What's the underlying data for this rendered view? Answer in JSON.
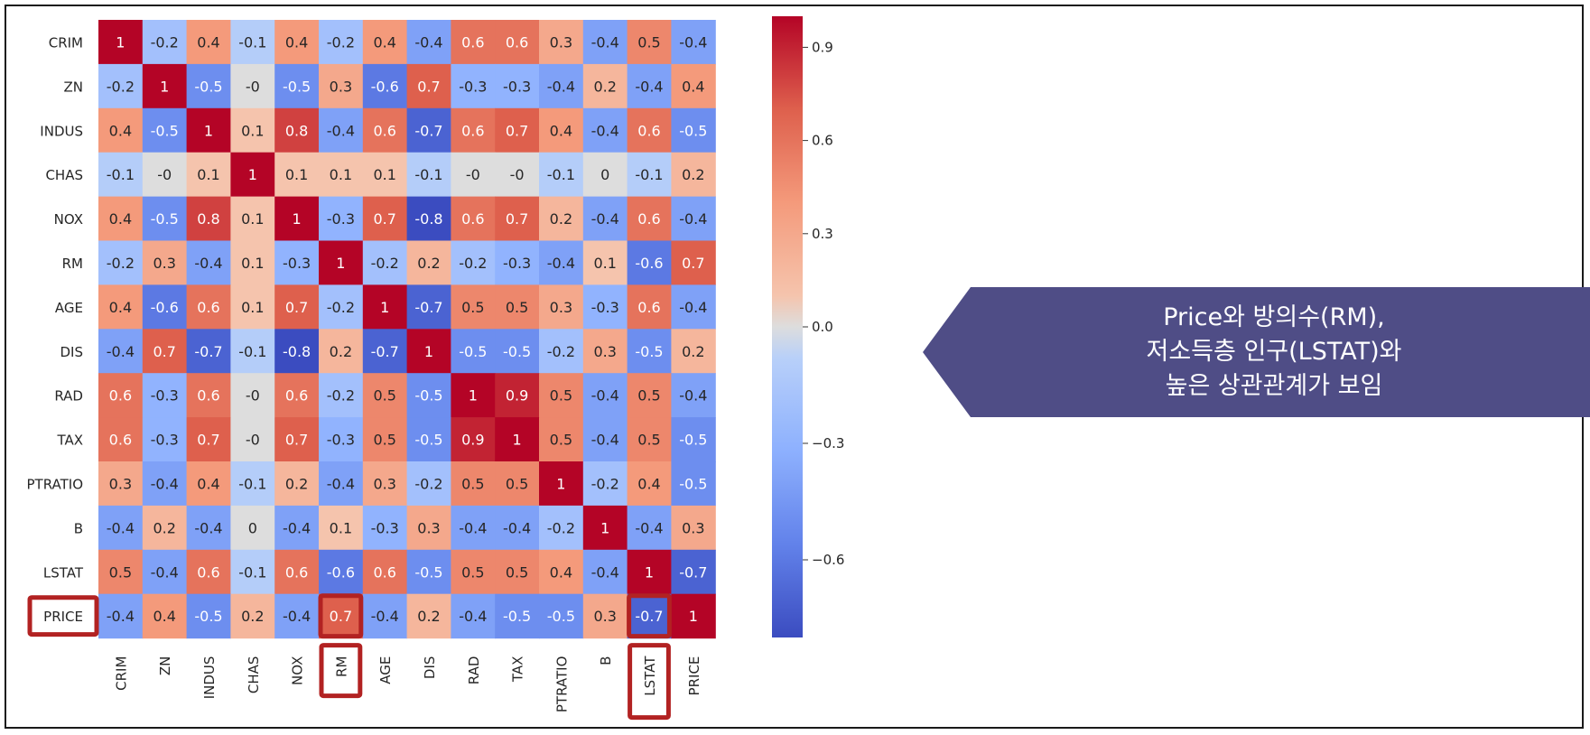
{
  "chart_data": {
    "type": "heatmap",
    "labels": [
      "CRIM",
      "ZN",
      "INDUS",
      "CHAS",
      "NOX",
      "RM",
      "AGE",
      "DIS",
      "RAD",
      "TAX",
      "PTRATIO",
      "B",
      "LSTAT",
      "PRICE"
    ],
    "values": [
      [
        1,
        -0.2,
        0.4,
        -0.1,
        0.4,
        -0.2,
        0.4,
        -0.4,
        0.6,
        0.6,
        0.3,
        -0.4,
        0.5,
        -0.4
      ],
      [
        -0.2,
        1,
        -0.5,
        0,
        -0.5,
        0.3,
        -0.6,
        0.7,
        -0.3,
        -0.3,
        -0.4,
        0.2,
        -0.4,
        0.4
      ],
      [
        0.4,
        -0.5,
        1,
        0.1,
        0.8,
        -0.4,
        0.6,
        -0.7,
        0.6,
        0.7,
        0.4,
        -0.4,
        0.6,
        -0.5
      ],
      [
        -0.1,
        0,
        0.1,
        1,
        0.1,
        0.1,
        0.1,
        -0.1,
        0,
        0,
        -0.1,
        0,
        -0.1,
        0.2
      ],
      [
        0.4,
        -0.5,
        0.8,
        0.1,
        1,
        -0.3,
        0.7,
        -0.8,
        0.6,
        0.7,
        0.2,
        -0.4,
        0.6,
        -0.4
      ],
      [
        -0.2,
        0.3,
        -0.4,
        0.1,
        -0.3,
        1,
        -0.2,
        0.2,
        -0.2,
        -0.3,
        -0.4,
        0.1,
        -0.6,
        0.7
      ],
      [
        0.4,
        -0.6,
        0.6,
        0.1,
        0.7,
        -0.2,
        1,
        -0.7,
        0.5,
        0.5,
        0.3,
        -0.3,
        0.6,
        -0.4
      ],
      [
        -0.4,
        0.7,
        -0.7,
        -0.1,
        -0.8,
        0.2,
        -0.7,
        1,
        -0.5,
        -0.5,
        -0.2,
        0.3,
        -0.5,
        0.2
      ],
      [
        0.6,
        -0.3,
        0.6,
        0,
        0.6,
        -0.2,
        0.5,
        -0.5,
        1,
        0.9,
        0.5,
        -0.4,
        0.5,
        -0.4
      ],
      [
        0.6,
        -0.3,
        0.7,
        0,
        0.7,
        -0.3,
        0.5,
        -0.5,
        0.9,
        1,
        0.5,
        -0.4,
        0.5,
        -0.5
      ],
      [
        0.3,
        -0.4,
        0.4,
        -0.1,
        0.2,
        -0.4,
        0.3,
        -0.2,
        0.5,
        0.5,
        1,
        -0.2,
        0.4,
        -0.5
      ],
      [
        -0.4,
        0.2,
        -0.4,
        0,
        -0.4,
        0.1,
        -0.3,
        0.3,
        -0.4,
        -0.4,
        -0.2,
        1,
        -0.4,
        0.3
      ],
      [
        0.5,
        -0.4,
        0.6,
        -0.1,
        0.6,
        -0.6,
        0.6,
        -0.5,
        0.5,
        0.5,
        0.4,
        -0.4,
        1,
        -0.7
      ],
      [
        -0.4,
        0.4,
        -0.5,
        0.2,
        -0.4,
        0.7,
        -0.4,
        0.2,
        -0.4,
        -0.5,
        -0.5,
        0.3,
        -0.7,
        1
      ]
    ],
    "colormap": "coolwarm",
    "vmin": -0.8,
    "vmax": 1,
    "colorbar_ticks": [
      0.9,
      0.6,
      0.3,
      0.0,
      -0.3,
      -0.6
    ],
    "colorbar_tick_labels": [
      "0.9",
      "0.6",
      "0.3",
      "0.0",
      "−0.3",
      "−0.6"
    ],
    "highlighted_labels": [
      "PRICE",
      "RM",
      "LSTAT"
    ],
    "highlighted_cells": [
      [
        13,
        5
      ],
      [
        13,
        12
      ]
    ],
    "colors": {
      "low": "#3b4cc0",
      "mid": "#f7f7f7",
      "high": "#b40426",
      "highlight": "#b22222"
    }
  },
  "callout": {
    "lines": [
      "Price와 방의수(RM),",
      "저소득층 인구(LSTAT)와",
      "높은 상관관계가 보임"
    ],
    "color": "#4f4d86"
  }
}
